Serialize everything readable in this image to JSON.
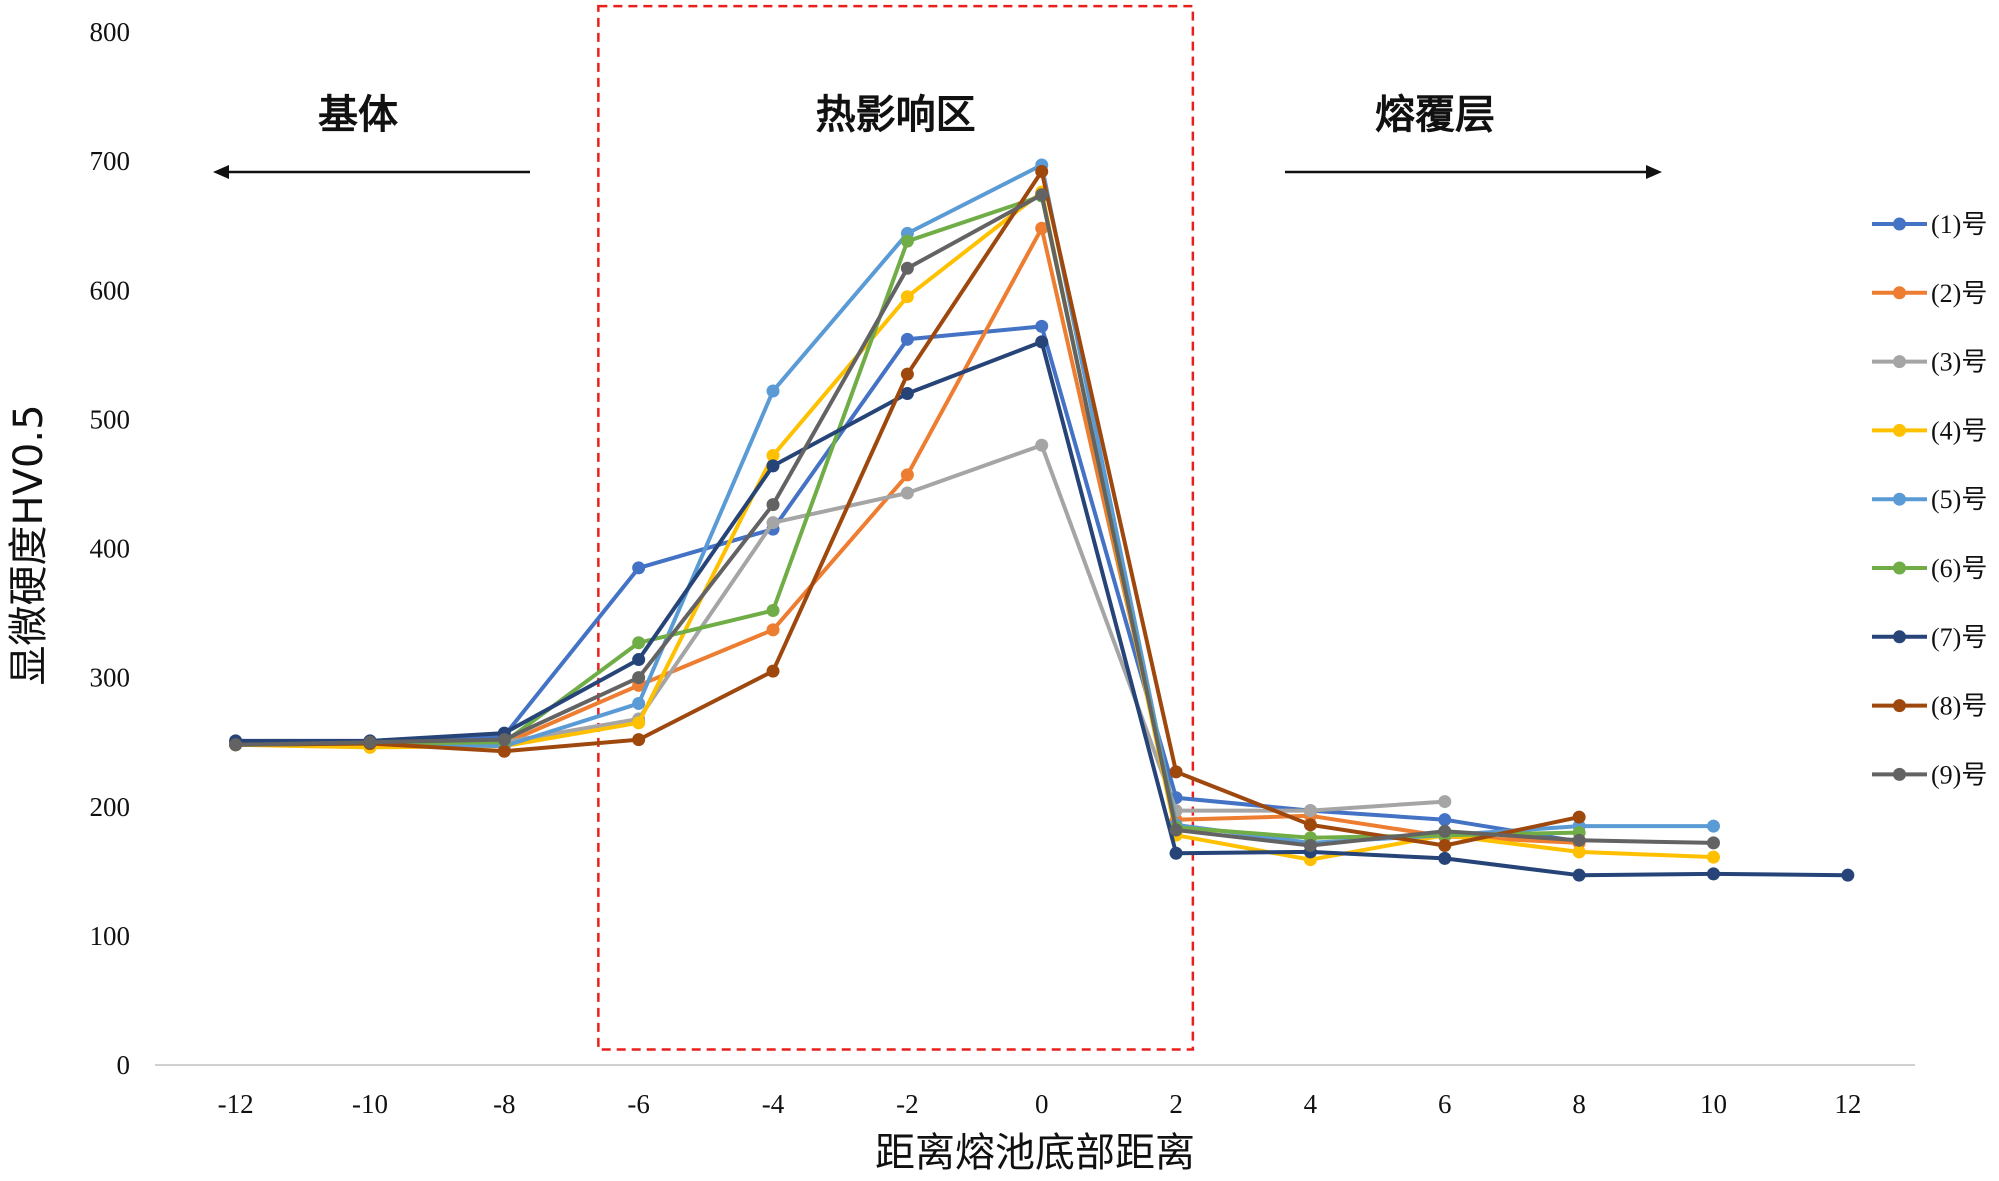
{
  "chart_data": {
    "type": "line",
    "title": "",
    "xlabel": "距离熔池底部距离",
    "ylabel": "显微硬度HV0.5",
    "xlim": [
      -13.2,
      13
    ],
    "ylim": [
      0,
      800
    ],
    "x_ticks": [
      -12,
      -10,
      -8,
      -6,
      -4,
      -2,
      0,
      2,
      4,
      6,
      8,
      10,
      12
    ],
    "y_ticks": [
      0,
      100,
      200,
      300,
      400,
      500,
      600,
      700,
      800
    ],
    "grid": false,
    "legend_position": "right",
    "regions": [
      {
        "label": "基体",
        "arrow": "left"
      },
      {
        "label": "热影响区",
        "box": "dashed",
        "box_x_range": [
          -6.6,
          2.25
        ],
        "box_y_range": [
          12,
          820
        ],
        "color": "#e8201c"
      },
      {
        "label": "熔覆层",
        "arrow": "right"
      }
    ],
    "series": [
      {
        "name": "(1)号",
        "color": "#4472c4",
        "x": [
          -12,
          -10,
          -8,
          -6,
          -4,
          -2,
          0,
          2,
          4,
          6,
          8
        ],
        "y": [
          250,
          250,
          255,
          385,
          415,
          562,
          572,
          207,
          197,
          190,
          173
        ]
      },
      {
        "name": "(2)号",
        "color": "#ed7d31",
        "x": [
          -12,
          -10,
          -8,
          -6,
          -4,
          -2,
          0,
          2,
          4,
          6,
          8
        ],
        "y": [
          249,
          248,
          249,
          294,
          337,
          457,
          648,
          190,
          193,
          177,
          172
        ]
      },
      {
        "name": "(3)号",
        "color": "#a5a5a5",
        "x": [
          -12,
          -10,
          -8,
          -6,
          -4,
          -2,
          0,
          2,
          4,
          6
        ],
        "y": [
          249,
          249,
          250,
          268,
          420,
          443,
          480,
          197,
          197,
          204
        ]
      },
      {
        "name": "(4)号",
        "color": "#ffc000",
        "x": [
          -12,
          -10,
          -8,
          -6,
          -4,
          -2,
          0,
          2,
          4,
          6,
          8,
          10
        ],
        "y": [
          248,
          246,
          247,
          265,
          472,
          595,
          676,
          178,
          159,
          178,
          165,
          161
        ]
      },
      {
        "name": "(5)号",
        "color": "#5b9bd5",
        "x": [
          -12,
          -10,
          -8,
          -6,
          -4,
          -2,
          0,
          2,
          4,
          6,
          8,
          10
        ],
        "y": [
          249,
          249,
          247,
          280,
          522,
          644,
          697,
          186,
          172,
          178,
          185,
          185
        ]
      },
      {
        "name": "(6)号",
        "color": "#70ad47",
        "x": [
          -12,
          -10,
          -8,
          -6,
          -4,
          -2,
          0,
          2,
          4,
          6,
          8
        ],
        "y": [
          248,
          249,
          250,
          327,
          352,
          638,
          673,
          184,
          176,
          178,
          180
        ]
      },
      {
        "name": "(7)号",
        "color": "#264478",
        "x": [
          -12,
          -10,
          -8,
          -6,
          -4,
          -2,
          0,
          2,
          4,
          6,
          8,
          10,
          12
        ],
        "y": [
          251,
          251,
          257,
          314,
          464,
          520,
          560,
          164,
          165,
          160,
          147,
          148,
          147
        ]
      },
      {
        "name": "(8)号",
        "color": "#9e480e",
        "x": [
          -12,
          -10,
          -8,
          -6,
          -4,
          -2,
          0,
          2,
          4,
          6,
          8
        ],
        "y": [
          248,
          249,
          243,
          252,
          305,
          535,
          692,
          227,
          186,
          170,
          192
        ]
      },
      {
        "name": "(9)号",
        "color": "#636363",
        "x": [
          -12,
          -10,
          -8,
          -6,
          -4,
          -2,
          0,
          2,
          4,
          6,
          8,
          10
        ],
        "y": [
          248,
          250,
          252,
          300,
          434,
          617,
          674,
          182,
          170,
          181,
          174,
          172
        ]
      }
    ]
  }
}
